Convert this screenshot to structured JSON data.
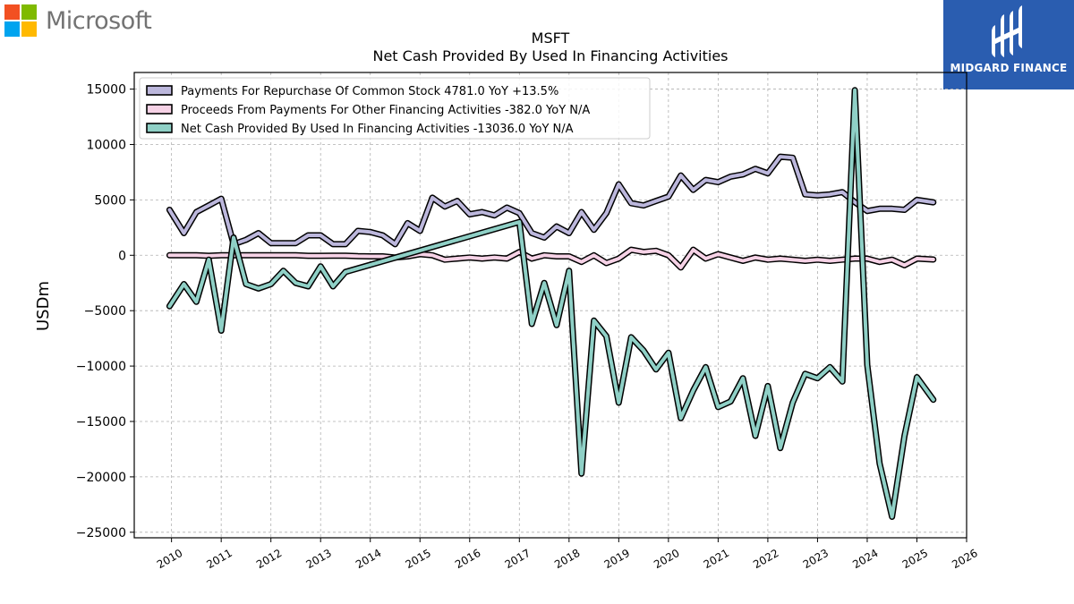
{
  "brand": {
    "company": "Microsoft",
    "sponsor": "MIDGARD FINANCE",
    "colors": {
      "red": "#f25022",
      "green": "#7fba00",
      "blue": "#00a4ef",
      "yellow": "#ffb900",
      "sponsor_bg": "#2a5db0"
    }
  },
  "chart_data": {
    "type": "line",
    "title": "MSFT",
    "subtitle": "Net Cash Provided By Used In Financing Activities",
    "ylabel": "USDm",
    "xlabel": "",
    "ylim": [
      -25500,
      16500
    ],
    "xlim": [
      2009.25,
      2026.0
    ],
    "yticks": [
      15000,
      10000,
      5000,
      0,
      -5000,
      -10000,
      -15000,
      -20000,
      -25000
    ],
    "ytick_labels": [
      "15000",
      "10000",
      "5000",
      "0",
      "−5000",
      "−10000",
      "−15000",
      "−20000",
      "−25000"
    ],
    "xticks": [
      2010,
      2011,
      2012,
      2013,
      2014,
      2015,
      2016,
      2017,
      2018,
      2019,
      2020,
      2021,
      2022,
      2023,
      2024,
      2025,
      2026
    ],
    "xtick_labels": [
      "2010",
      "2011",
      "2012",
      "2013",
      "2014",
      "2015",
      "2016",
      "2017",
      "2018",
      "2019",
      "2020",
      "2021",
      "2022",
      "2023",
      "2024",
      "2025",
      "2026"
    ],
    "grid": true,
    "legend_position": "top-left",
    "series": [
      {
        "name": "Payments For Repurchase Of Common Stock  4781.0 YoY +13.5%",
        "color": "#bcb7dc",
        "x": [
          2009.96,
          2010.25,
          2010.5,
          2010.75,
          2011.0,
          2011.25,
          2011.5,
          2011.75,
          2012.0,
          2012.25,
          2012.5,
          2012.75,
          2013.0,
          2013.25,
          2013.5,
          2013.75,
          2014.0,
          2014.25,
          2014.5,
          2014.75,
          2015.0,
          2015.25,
          2015.5,
          2015.75,
          2016.0,
          2016.25,
          2016.5,
          2016.75,
          2017.0,
          2017.25,
          2017.5,
          2017.75,
          2018.0,
          2018.25,
          2018.5,
          2018.75,
          2019.0,
          2019.25,
          2019.5,
          2019.75,
          2020.0,
          2020.25,
          2020.5,
          2020.75,
          2021.0,
          2021.25,
          2021.5,
          2021.75,
          2022.0,
          2022.25,
          2022.5,
          2022.75,
          2023.0,
          2023.25,
          2023.5,
          2023.75,
          2024.0,
          2024.25,
          2024.5,
          2024.75,
          2025.0,
          2025.33
        ],
        "values": [
          4100,
          2000,
          3900,
          4500,
          5100,
          1000,
          1400,
          2000,
          1100,
          1100,
          1100,
          1800,
          1800,
          1000,
          1000,
          2200,
          2100,
          1800,
          1000,
          2900,
          2200,
          5200,
          4400,
          4900,
          3700,
          3900,
          3600,
          4300,
          3800,
          2000,
          1600,
          2600,
          2000,
          3900,
          2300,
          3800,
          6400,
          4700,
          4500,
          4900,
          5300,
          7200,
          5900,
          6800,
          6600,
          7100,
          7300,
          7800,
          7400,
          8900,
          8800,
          5500,
          5400,
          5500,
          5700,
          4800,
          4000,
          4200,
          4200,
          4100,
          5000,
          4781
        ]
      },
      {
        "name": "Proceeds From Payments For Other Financing Activities  -382.0 YoY N/A",
        "color": "#f6d2e6",
        "x": [
          2009.96,
          2010.25,
          2010.5,
          2010.75,
          2011.0,
          2011.25,
          2011.5,
          2011.75,
          2012.0,
          2012.25,
          2012.5,
          2012.75,
          2013.0,
          2013.25,
          2013.5,
          2013.75,
          2014.0,
          2014.25,
          2014.5,
          2014.75,
          2015.0,
          2015.25,
          2015.5,
          2015.75,
          2016.0,
          2016.25,
          2016.5,
          2016.75,
          2017.0,
          2017.25,
          2017.5,
          2017.75,
          2018.0,
          2018.25,
          2018.5,
          2018.75,
          2019.0,
          2019.25,
          2019.5,
          2019.75,
          2020.0,
          2020.25,
          2020.5,
          2020.75,
          2021.0,
          2021.25,
          2021.5,
          2021.75,
          2022.0,
          2022.25,
          2022.5,
          2022.75,
          2023.0,
          2023.25,
          2023.5,
          2023.75,
          2024.0,
          2024.25,
          2024.5,
          2024.75,
          2025.0,
          2025.33
        ],
        "values": [
          0,
          0,
          0,
          -50,
          0,
          0,
          0,
          0,
          0,
          0,
          0,
          -50,
          -50,
          -30,
          -30,
          -80,
          -100,
          -100,
          -200,
          -100,
          100,
          0,
          -400,
          -300,
          -200,
          -300,
          -200,
          -300,
          300,
          -300,
          0,
          -100,
          -100,
          -600,
          0,
          -700,
          -300,
          500,
          300,
          400,
          0,
          -1100,
          500,
          -300,
          100,
          -200,
          -500,
          -200,
          -400,
          -300,
          -400,
          -500,
          -400,
          -500,
          -400,
          -300,
          -300,
          -600,
          -400,
          -900,
          -300,
          -382
        ]
      },
      {
        "name": "Net Cash Provided By Used In Financing Activities  -13036.0 YoY N/A",
        "color": "#8fd0c6",
        "x": [
          2009.96,
          2010.25,
          2010.5,
          2010.75,
          2011.0,
          2011.25,
          2011.5,
          2011.75,
          2012.0,
          2012.25,
          2012.5,
          2012.75,
          2013.0,
          2013.25,
          2013.5,
          2017.0,
          2017.25,
          2017.5,
          2017.75,
          2018.0,
          2018.25,
          2018.5,
          2018.75,
          2019.0,
          2019.25,
          2019.5,
          2019.75,
          2020.0,
          2020.25,
          2020.5,
          2020.75,
          2021.0,
          2021.25,
          2021.5,
          2021.75,
          2022.0,
          2022.25,
          2022.5,
          2022.75,
          2023.0,
          2023.25,
          2023.5,
          2023.75,
          2024.0,
          2024.25,
          2024.5,
          2024.75,
          2025.0,
          2025.33
        ],
        "values": [
          -4600,
          -2600,
          -4200,
          -400,
          -6800,
          1600,
          -2600,
          -3000,
          -2600,
          -1400,
          -2500,
          -2800,
          -1000,
          -2800,
          -1500,
          3000,
          -6200,
          -2500,
          -6300,
          -1400,
          -19700,
          -5900,
          -7300,
          -13300,
          -7400,
          -8600,
          -10300,
          -8800,
          -14700,
          -12200,
          -10100,
          -13700,
          -13200,
          -11100,
          -16300,
          -11800,
          -17400,
          -13300,
          -10700,
          -11100,
          -10100,
          -11400,
          14900,
          -9900,
          -18800,
          -23600,
          -16300,
          -11000,
          -13036
        ]
      }
    ]
  }
}
